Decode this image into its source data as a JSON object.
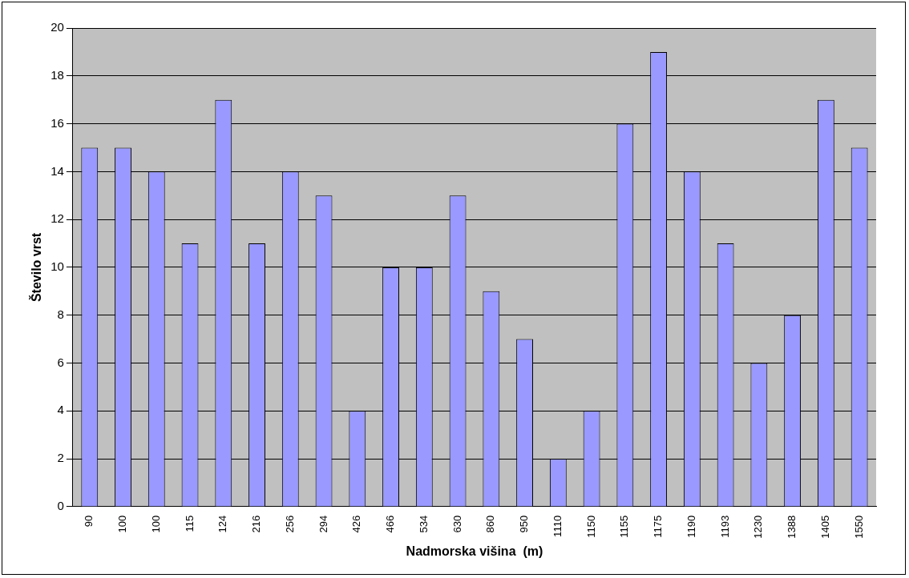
{
  "chart_data": {
    "type": "bar",
    "xlabel": "Nadmorska višina  (m)",
    "ylabel": "Število vrst",
    "categories": [
      "90",
      "100",
      "100",
      "115",
      "124",
      "216",
      "256",
      "294",
      "426",
      "466",
      "534",
      "630",
      "860",
      "950",
      "1110",
      "1150",
      "1155",
      "1175",
      "1190",
      "1193",
      "1230",
      "1388",
      "1405",
      "1550"
    ],
    "values": [
      15,
      15,
      14,
      11,
      17,
      11,
      14,
      13,
      4,
      10,
      10,
      13,
      9,
      7,
      2,
      4,
      16,
      19,
      14,
      11,
      6,
      8,
      17,
      15
    ],
    "color": "#9999ff",
    "ylim": [
      0,
      20
    ],
    "yticks": [
      0,
      2,
      4,
      6,
      8,
      10,
      12,
      14,
      16,
      18,
      20
    ],
    "grid": "y",
    "legend": false
  }
}
